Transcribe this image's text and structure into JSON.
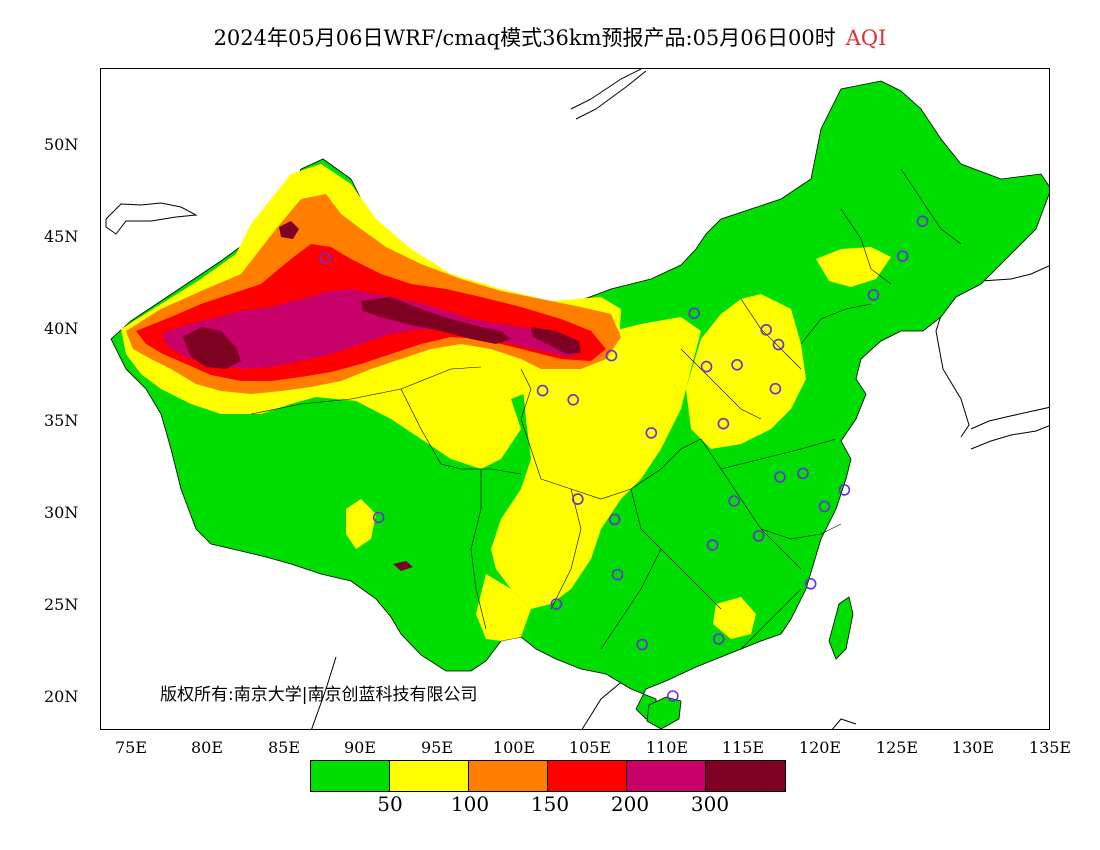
{
  "title": {
    "main": "2024年05月06日WRF/cmaq模式36km预报产品:05月06日00时",
    "variable": "AQI"
  },
  "axes": {
    "y_ticks": [
      "50N",
      "45N",
      "40N",
      "35N",
      "30N",
      "25N",
      "20N"
    ],
    "x_ticks": [
      "75E",
      "80E",
      "85E",
      "90E",
      "95E",
      "100E",
      "105E",
      "110E",
      "115E",
      "120E",
      "125E",
      "130E",
      "135E"
    ],
    "lon_range": [
      73,
      135
    ],
    "lat_range": [
      18,
      54
    ]
  },
  "copyright": "版权所有:南京大学|南京创蓝科技有限公司",
  "legend": {
    "colors": [
      "#00dd00",
      "#ffff00",
      "#ff7e00",
      "#ff0000",
      "#c8006a",
      "#7e0023"
    ],
    "values": [
      "50",
      "100",
      "150",
      "200",
      "300"
    ]
  },
  "stations": [
    [
      87.6,
      43.8
    ],
    [
      91.1,
      29.7
    ],
    [
      101.8,
      36.6
    ],
    [
      103.8,
      36.1
    ],
    [
      106.3,
      38.5
    ],
    [
      111.7,
      40.8
    ],
    [
      116.4,
      39.9
    ],
    [
      117.2,
      39.1
    ],
    [
      114.5,
      38.0
    ],
    [
      112.5,
      37.9
    ],
    [
      117.0,
      36.7
    ],
    [
      113.6,
      34.8
    ],
    [
      108.9,
      34.3
    ],
    [
      104.1,
      30.7
    ],
    [
      106.5,
      29.6
    ],
    [
      106.7,
      26.6
    ],
    [
      102.7,
      25.0
    ],
    [
      108.3,
      22.8
    ],
    [
      110.3,
      20.0
    ],
    [
      113.3,
      23.1
    ],
    [
      119.3,
      26.1
    ],
    [
      112.9,
      28.2
    ],
    [
      115.9,
      28.7
    ],
    [
      114.3,
      30.6
    ],
    [
      117.3,
      31.9
    ],
    [
      118.8,
      32.1
    ],
    [
      120.2,
      30.3
    ],
    [
      121.5,
      31.2
    ],
    [
      123.4,
      41.8
    ],
    [
      125.3,
      43.9
    ],
    [
      126.6,
      45.8
    ]
  ]
}
